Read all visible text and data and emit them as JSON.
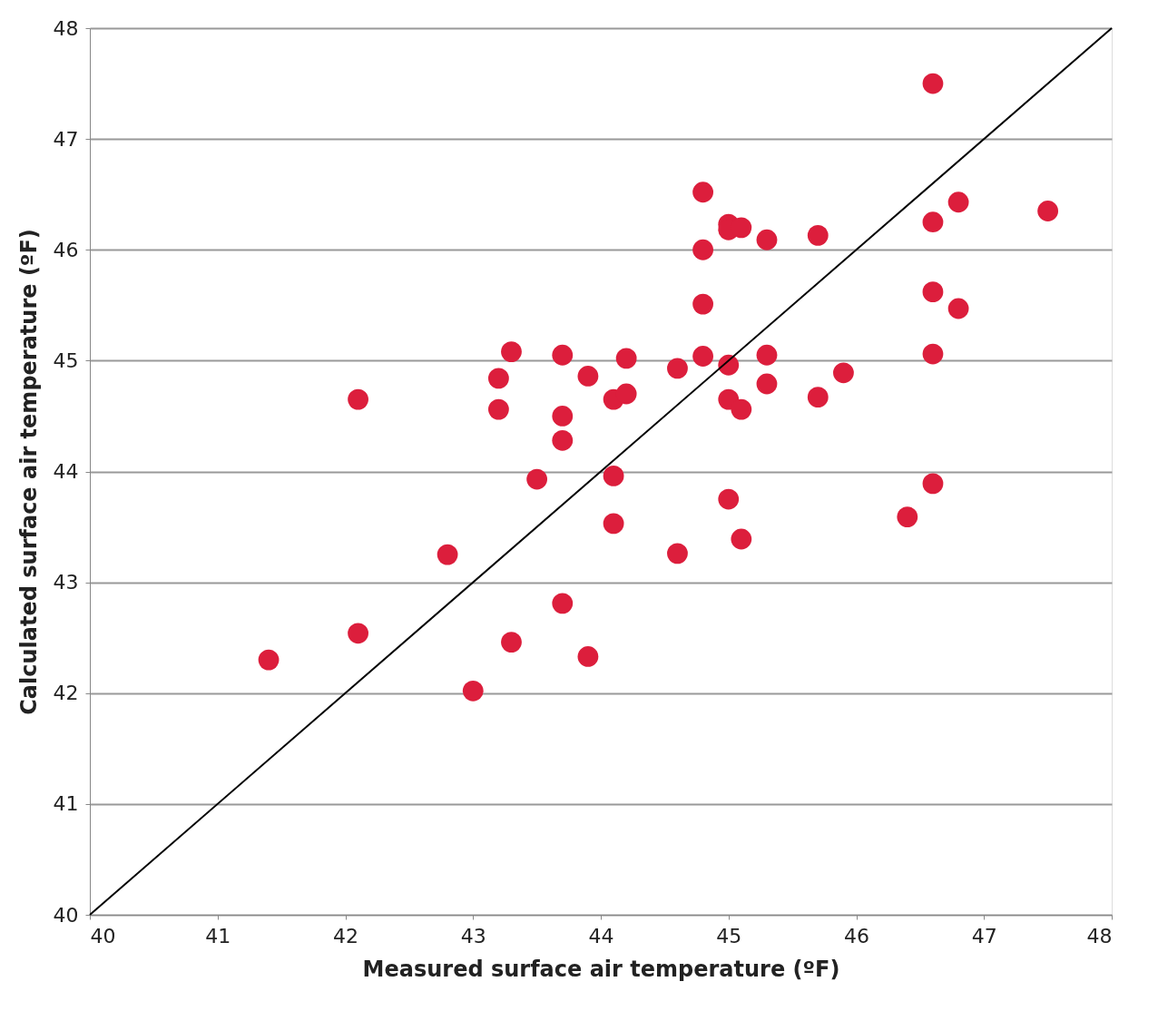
{
  "chart_data": {
    "type": "scatter",
    "xlabel": "Measured surface air temperature (ºF)",
    "ylabel": "Calculated surface air temperature (ºF)",
    "xlim": [
      40,
      48
    ],
    "ylim": [
      40,
      48
    ],
    "xticks": [
      40,
      41,
      42,
      43,
      44,
      45,
      46,
      47,
      48
    ],
    "yticks": [
      40,
      41,
      42,
      43,
      44,
      45,
      46,
      47,
      48
    ],
    "grid": "y",
    "marker": "circle",
    "series": [
      {
        "color": "#dc1e3c",
        "x": [
          46.6,
          44.8,
          46.8,
          47.5,
          45.0,
          45.0,
          45.1,
          46.6,
          45.3,
          45.7,
          44.8,
          44.8,
          46.6,
          46.8,
          43.3,
          43.7,
          44.2,
          44.8,
          45.0,
          45.3,
          46.6,
          43.2,
          43.9,
          44.6,
          45.9,
          43.2,
          42.1,
          43.7,
          44.1,
          44.2,
          45.0,
          45.1,
          45.3,
          45.7,
          43.7,
          43.5,
          44.1,
          46.6,
          44.1,
          45.0,
          46.4,
          45.1,
          42.8,
          44.6,
          43.7,
          42.1,
          43.3,
          43.9,
          41.4,
          43.0
        ],
        "values": [
          47.5,
          46.52,
          46.43,
          46.35,
          46.23,
          46.18,
          46.2,
          46.25,
          46.09,
          46.13,
          46.0,
          45.51,
          45.62,
          45.47,
          45.08,
          45.05,
          45.02,
          45.04,
          44.96,
          45.05,
          45.06,
          44.84,
          44.86,
          44.93,
          44.89,
          44.56,
          44.65,
          44.5,
          44.65,
          44.7,
          44.65,
          44.56,
          44.79,
          44.67,
          44.28,
          43.93,
          43.96,
          43.89,
          43.53,
          43.75,
          43.59,
          43.39,
          43.25,
          43.26,
          42.81,
          42.54,
          42.46,
          42.33,
          42.3,
          42.02
        ]
      },
      {
        "type": "line",
        "color": "#000000",
        "marker": "none",
        "x": [
          40,
          48
        ],
        "values": [
          40,
          48
        ]
      }
    ]
  }
}
